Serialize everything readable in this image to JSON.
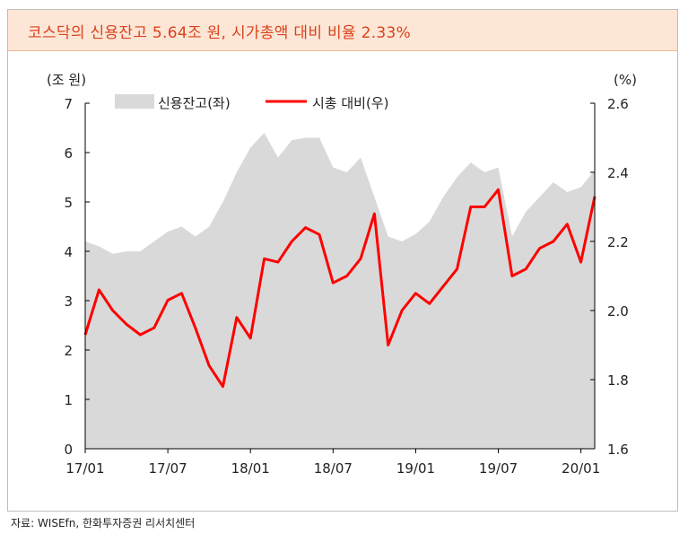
{
  "header": {
    "title": "코스닥의 신용잔고 5.64조 원, 시가총액 대비 비율 2.33%"
  },
  "footer": {
    "source": "자료: WISEfn, 한화투자증권 리서치센터"
  },
  "colors": {
    "area": "#d9d9d9",
    "line": "#ff0000",
    "title": "#d9421c",
    "title_bg": "#fde6d6"
  },
  "chart_data": {
    "type": "area",
    "left_axis_unit": "(조 원)",
    "right_axis_unit": "(%)",
    "left_ylim": [
      0,
      7
    ],
    "left_ticks": [
      0,
      1,
      2,
      3,
      4,
      5,
      6,
      7
    ],
    "right_ylim": [
      1.6,
      2.6
    ],
    "right_ticks": [
      "1.6",
      "1.8",
      "2.0",
      "2.2",
      "2.4",
      "2.6"
    ],
    "x_ticks": [
      "17/01",
      "17/07",
      "18/01",
      "18/07",
      "19/01",
      "19/07",
      "20/01"
    ],
    "x_range": [
      "2017-01",
      "2020-02"
    ],
    "grid": false,
    "legend_position": "top",
    "series": [
      {
        "name": "신용잔고(좌)",
        "axis": "left",
        "kind": "area",
        "x": [
          "2017-01",
          "2017-02",
          "2017-03",
          "2017-04",
          "2017-05",
          "2017-06",
          "2017-07",
          "2017-08",
          "2017-09",
          "2017-10",
          "2017-11",
          "2017-12",
          "2018-01",
          "2018-02",
          "2018-03",
          "2018-04",
          "2018-05",
          "2018-06",
          "2018-07",
          "2018-08",
          "2018-09",
          "2018-10",
          "2018-11",
          "2018-12",
          "2019-01",
          "2019-02",
          "2019-03",
          "2019-04",
          "2019-05",
          "2019-06",
          "2019-07",
          "2019-08",
          "2019-09",
          "2019-10",
          "2019-11",
          "2019-12",
          "2020-01",
          "2020-02"
        ],
        "values": [
          4.2,
          4.1,
          3.95,
          4.0,
          4.0,
          4.2,
          4.4,
          4.5,
          4.3,
          4.5,
          5.0,
          5.6,
          6.1,
          6.4,
          5.9,
          6.25,
          6.3,
          6.3,
          5.7,
          5.6,
          5.9,
          5.1,
          4.3,
          4.2,
          4.35,
          4.6,
          5.1,
          5.5,
          5.8,
          5.6,
          5.7,
          4.3,
          4.8,
          5.1,
          5.4,
          5.2,
          5.3,
          5.64
        ]
      },
      {
        "name": "시총 대비(우)",
        "axis": "right",
        "kind": "line",
        "x": [
          "2017-01",
          "2017-02",
          "2017-03",
          "2017-04",
          "2017-05",
          "2017-06",
          "2017-07",
          "2017-08",
          "2017-09",
          "2017-10",
          "2017-11",
          "2017-12",
          "2018-01",
          "2018-02",
          "2018-03",
          "2018-04",
          "2018-05",
          "2018-06",
          "2018-07",
          "2018-08",
          "2018-09",
          "2018-10",
          "2018-11",
          "2018-12",
          "2019-01",
          "2019-02",
          "2019-03",
          "2019-04",
          "2019-05",
          "2019-06",
          "2019-07",
          "2019-08",
          "2019-09",
          "2019-10",
          "2019-11",
          "2019-12",
          "2020-01",
          "2020-02"
        ],
        "values": [
          1.93,
          2.06,
          2.0,
          1.96,
          1.93,
          1.95,
          2.03,
          2.05,
          1.95,
          1.84,
          1.78,
          1.98,
          1.92,
          2.15,
          2.14,
          2.2,
          2.24,
          2.22,
          2.08,
          2.1,
          2.15,
          2.28,
          1.9,
          2.0,
          2.05,
          2.02,
          2.07,
          2.12,
          2.3,
          2.3,
          2.35,
          2.1,
          2.12,
          2.18,
          2.2,
          2.25,
          2.14,
          2.33
        ]
      }
    ]
  }
}
